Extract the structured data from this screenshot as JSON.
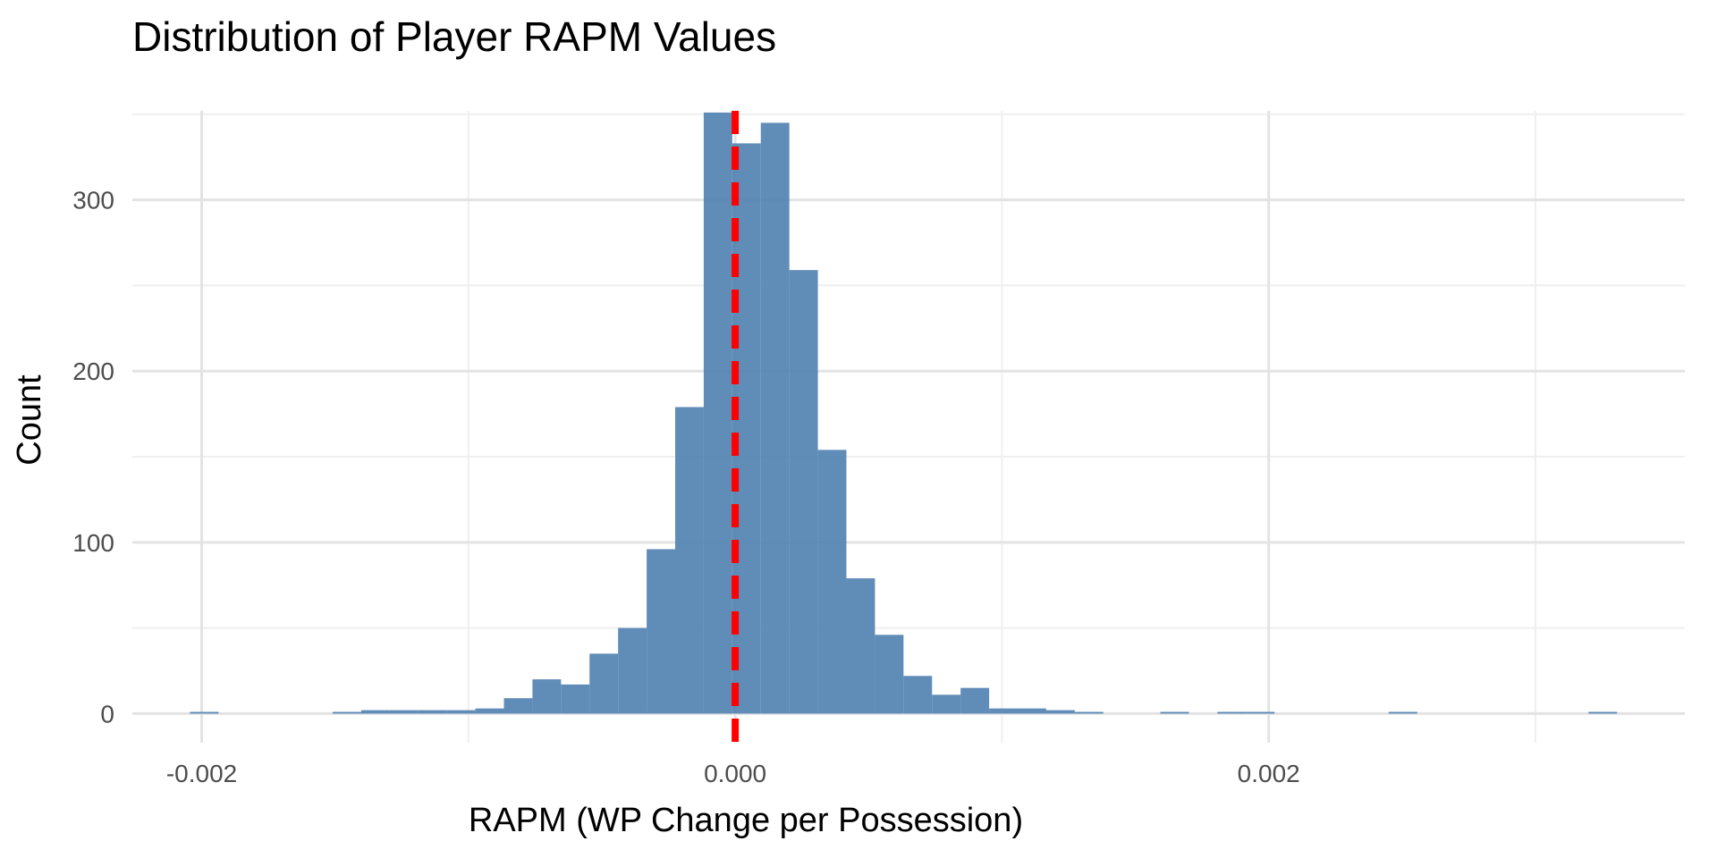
{
  "chart_data": {
    "type": "bar",
    "subtype": "histogram",
    "title": "Distribution of Player RAPM Values",
    "xlabel": "RAPM (WP Change per Possession)",
    "ylabel": "Count",
    "xlim": [
      -0.00226,
      0.00356
    ],
    "ylim": [
      -17,
      352
    ],
    "x_ticks": [
      -0.002,
      0.0,
      0.002
    ],
    "x_tick_labels": [
      "-0.002",
      "0.000",
      "0.002"
    ],
    "y_ticks": [
      0,
      100,
      200,
      300
    ],
    "y_tick_labels": [
      "0",
      "100",
      "200",
      "300"
    ],
    "bin_width": 0.000107,
    "bin_edges_start": -0.002044,
    "counts": [
      1,
      0,
      0,
      0,
      0,
      1,
      2,
      2,
      2,
      2,
      3,
      9,
      20,
      17,
      35,
      50,
      96,
      179,
      351,
      333,
      345,
      259,
      154,
      79,
      46,
      22,
      11,
      15,
      3,
      3,
      2,
      1,
      0,
      0,
      1,
      0,
      1,
      1,
      0,
      0,
      0,
      0,
      1,
      0,
      0,
      0,
      0,
      0,
      0,
      1
    ],
    "reference_line": {
      "x": 0.0,
      "style": "dashed",
      "color": "#ff0000"
    },
    "bar_color": "#4f7fb0",
    "grid": true,
    "legend": "none"
  }
}
